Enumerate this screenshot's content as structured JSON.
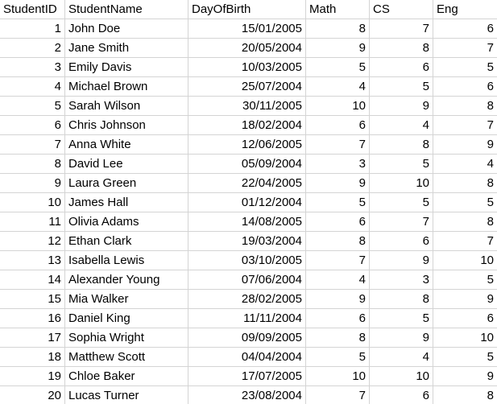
{
  "sheet": {
    "headers": [
      "StudentID",
      "StudentName",
      "DayOfBirth",
      "Math",
      "CS",
      "Eng"
    ],
    "rows": [
      [
        "1",
        "John Doe",
        "15/01/2005",
        "8",
        "7",
        "6"
      ],
      [
        "2",
        "Jane Smith",
        "20/05/2004",
        "9",
        "8",
        "7"
      ],
      [
        "3",
        "Emily Davis",
        "10/03/2005",
        "5",
        "6",
        "5"
      ],
      [
        "4",
        "Michael Brown",
        "25/07/2004",
        "4",
        "5",
        "6"
      ],
      [
        "5",
        "Sarah Wilson",
        "30/11/2005",
        "10",
        "9",
        "8"
      ],
      [
        "6",
        "Chris Johnson",
        "18/02/2004",
        "6",
        "4",
        "7"
      ],
      [
        "7",
        "Anna White",
        "12/06/2005",
        "7",
        "8",
        "9"
      ],
      [
        "8",
        "David Lee",
        "05/09/2004",
        "3",
        "5",
        "4"
      ],
      [
        "9",
        "Laura Green",
        "22/04/2005",
        "9",
        "10",
        "8"
      ],
      [
        "10",
        "James Hall",
        "01/12/2004",
        "5",
        "5",
        "5"
      ],
      [
        "11",
        "Olivia Adams",
        "14/08/2005",
        "6",
        "7",
        "8"
      ],
      [
        "12",
        "Ethan Clark",
        "19/03/2004",
        "8",
        "6",
        "7"
      ],
      [
        "13",
        "Isabella Lewis",
        "03/10/2005",
        "7",
        "9",
        "10"
      ],
      [
        "14",
        "Alexander Young",
        "07/06/2004",
        "4",
        "3",
        "5"
      ],
      [
        "15",
        "Mia Walker",
        "28/02/2005",
        "9",
        "8",
        "9"
      ],
      [
        "16",
        "Daniel King",
        "11/11/2004",
        "6",
        "5",
        "6"
      ],
      [
        "17",
        "Sophia Wright",
        "09/09/2005",
        "8",
        "9",
        "10"
      ],
      [
        "18",
        "Matthew Scott",
        "04/04/2004",
        "5",
        "4",
        "5"
      ],
      [
        "19",
        "Chloe Baker",
        "17/07/2005",
        "10",
        "10",
        "9"
      ],
      [
        "20",
        "Lucas Turner",
        "23/08/2004",
        "7",
        "6",
        "8"
      ]
    ]
  },
  "colors": {
    "gridline": "#d4d4d4",
    "text": "#000000",
    "background": "#ffffff"
  }
}
